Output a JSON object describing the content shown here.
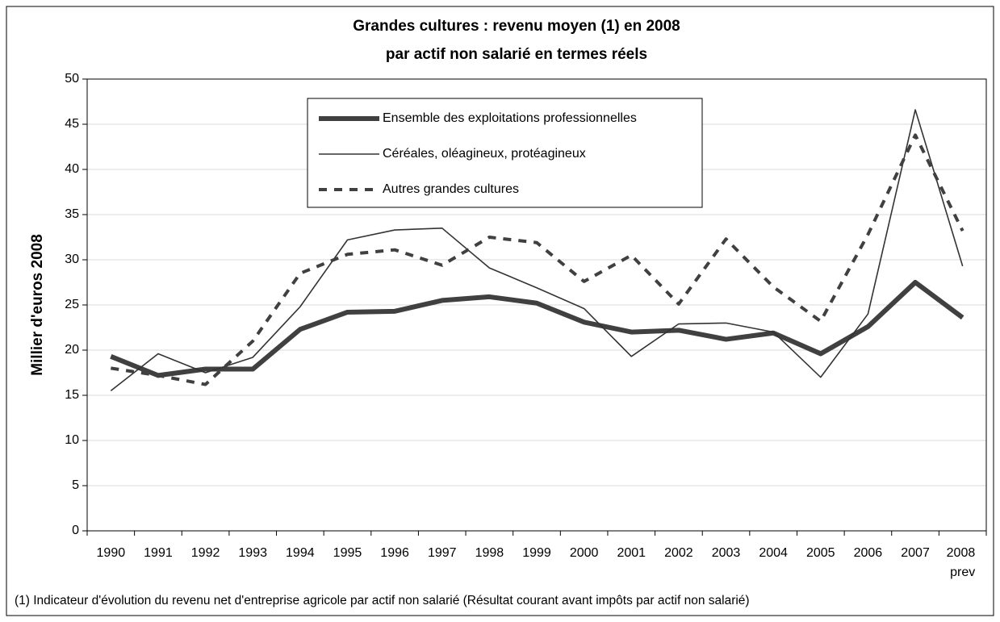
{
  "chart_data": {
    "type": "line",
    "title": "Grandes cultures : revenu moyen (1) en 2008",
    "subtitle": "par actif non salarié en termes réels",
    "y_label": "Millier d'euros 2008",
    "footnote": "(1) Indicateur d'évolution du revenu net d'entreprise agricole par actif non salarié (Résultat courant avant impôts par actif non salarié)",
    "categories": [
      "1990",
      "1991",
      "1992",
      "1993",
      "1994",
      "1995",
      "1996",
      "1997",
      "1998",
      "1999",
      "2000",
      "2001",
      "2002",
      "2003",
      "2004",
      "2005",
      "2006",
      "2007",
      "2008 prev"
    ],
    "series": [
      {
        "name": "Ensemble des exploitations professionnelles",
        "color": "#404040",
        "dashed": false,
        "values": [
          19.3,
          17.2,
          17.9,
          17.9,
          22.3,
          24.2,
          24.3,
          25.5,
          25.9,
          25.2,
          23.1,
          22.0,
          22.2,
          21.2,
          21.9,
          19.6,
          22.6,
          27.5,
          23.6
        ]
      },
      {
        "name": "Céréales, oléagineux, protéagineux",
        "color": "#333333",
        "dashed": false,
        "values": [
          15.5,
          19.6,
          17.5,
          19.2,
          24.8,
          32.2,
          33.3,
          33.5,
          29.1,
          26.9,
          24.6,
          19.3,
          22.9,
          23.0,
          22.0,
          17.0,
          24.0,
          46.6,
          29.3
        ]
      },
      {
        "name": "Autres grandes cultures",
        "color": "#404040",
        "dashed": true,
        "values": [
          18.0,
          17.2,
          16.2,
          21.0,
          28.5,
          30.6,
          31.1,
          29.4,
          32.5,
          31.9,
          27.6,
          30.5,
          25.1,
          32.3,
          27.0,
          23.2,
          32.8,
          43.8,
          33.2
        ]
      }
    ],
    "ylim": [
      0,
      50
    ],
    "yticks": [
      0,
      5,
      10,
      15,
      20,
      25,
      30,
      35,
      40,
      45,
      50
    ],
    "grid": true
  }
}
